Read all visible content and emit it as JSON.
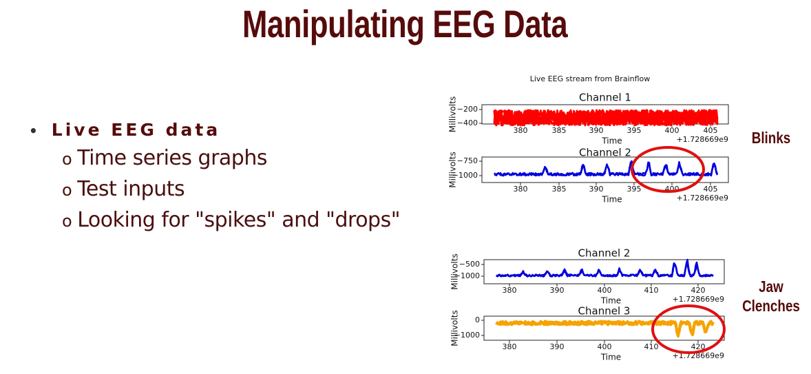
{
  "title": "Manipulating EEG Data",
  "bullets": {
    "main": "Live EEG data",
    "sub": [
      "Time series graphs",
      "Test inputs",
      "Looking for \"spikes\" and \"drops\""
    ]
  },
  "figures": [
    {
      "title": "Live EEG stream from Brainflow",
      "label": "Blinks",
      "panels": [
        {
          "title": "Channel 1",
          "y_label": "Millivolts",
          "x_label": "Time",
          "yticks": [
            "−200",
            "−400"
          ],
          "xticks": [
            "380",
            "385",
            "390",
            "395",
            "400",
            "405"
          ],
          "offset": "+1.728669e9"
        },
        {
          "title": "Channel 2",
          "y_label": "Millivolts",
          "x_label": "Time",
          "yticks": [
            "−750",
            "−1000"
          ],
          "xticks": [
            "380",
            "385",
            "390",
            "395",
            "400",
            "405"
          ],
          "offset": "+1.728669e9"
        }
      ]
    },
    {
      "label": "Jaw Clenches",
      "panels": [
        {
          "title": "Channel 2",
          "y_label": "Millivolts",
          "x_label": "Time",
          "yticks": [
            "−500",
            "−1000"
          ],
          "xticks": [
            "380",
            "390",
            "400",
            "410",
            "420"
          ],
          "offset": "+1.728669e9"
        },
        {
          "title": "Channel 3",
          "y_label": "Millivolts",
          "x_label": "Time",
          "yticks": [
            "0",
            "−1000"
          ],
          "xticks": [
            "380",
            "390",
            "400",
            "410",
            "420"
          ],
          "offset": "+1.728669e9"
        }
      ]
    }
  ]
}
